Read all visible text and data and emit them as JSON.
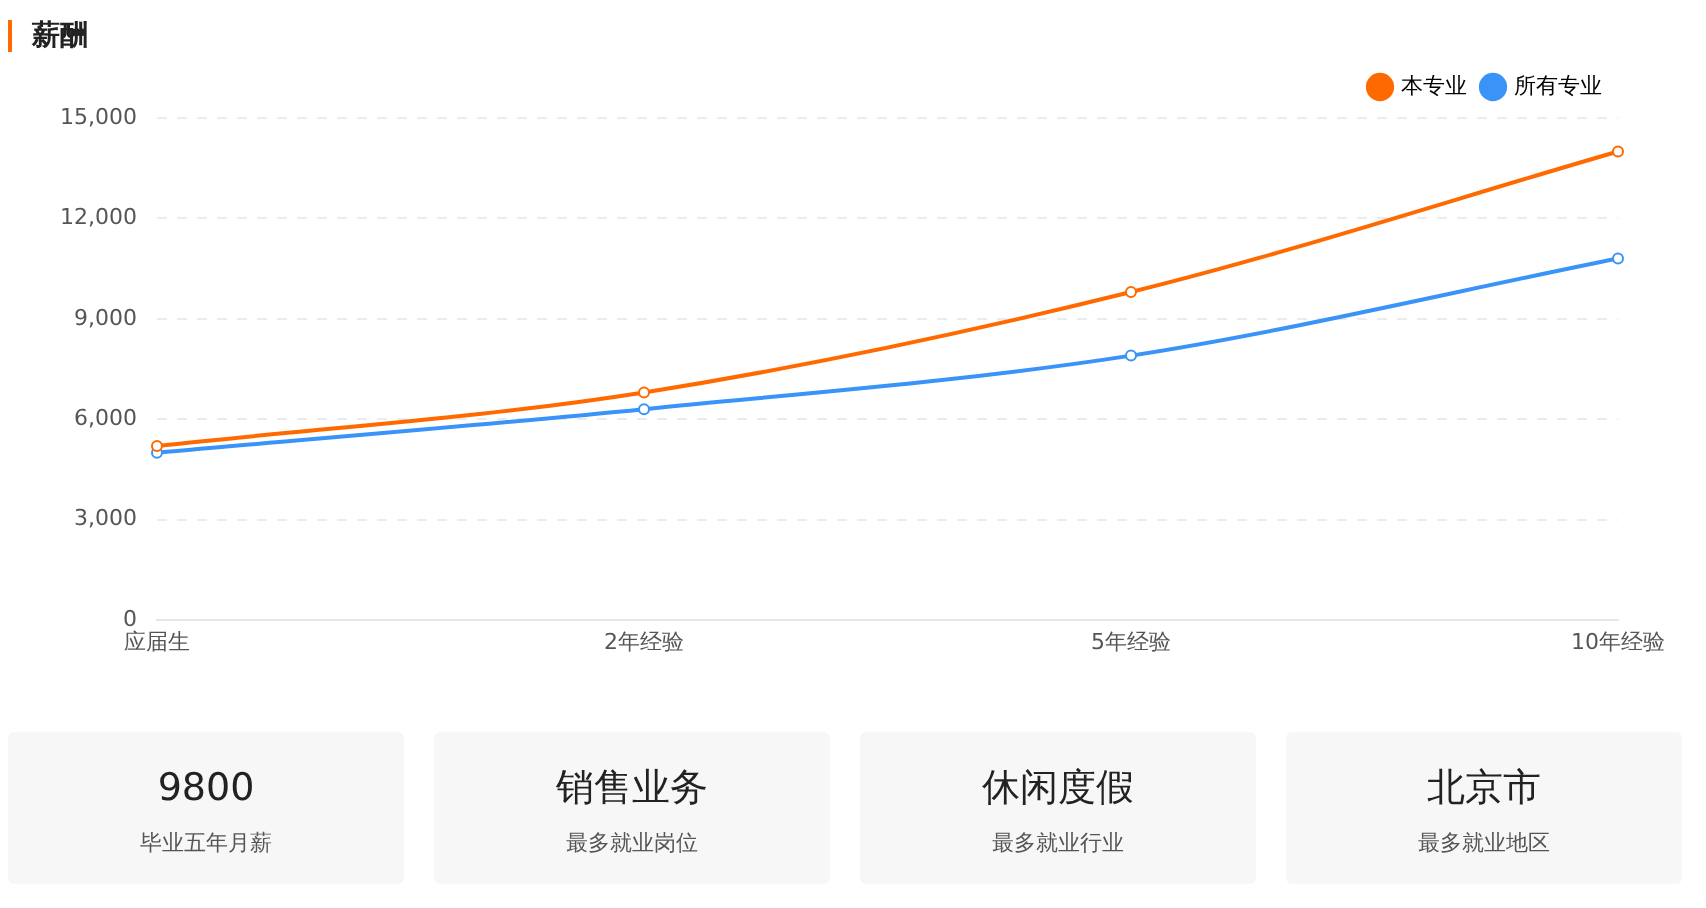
{
  "chart_data": [
    {
      "type": "line",
      "title": "薪酬",
      "categories": [
        "应届生",
        "2年经验",
        "5年经验",
        "10年经验"
      ],
      "series": [
        {
          "name": "本专业",
          "color": "#ff6a00",
          "values": [
            5200,
            6800,
            9800,
            14000
          ]
        },
        {
          "name": "所有专业",
          "color": "#3a94f8",
          "values": [
            5000,
            6300,
            7900,
            10800
          ]
        }
      ],
      "ylim": [
        0,
        15000
      ],
      "yticks": [
        {
          "value": 0,
          "label": "0"
        },
        {
          "value": 3000,
          "label": "3,000"
        },
        {
          "value": 6000,
          "label": "6,000"
        },
        {
          "value": 9000,
          "label": "9,000"
        },
        {
          "value": 12000,
          "label": "12,000"
        },
        {
          "value": 15000,
          "label": "15,000"
        }
      ],
      "grid": "y",
      "legend": "top right",
      "marker": "circle",
      "line_style": "solid"
    },
    {
      "type": "other",
      "annotations": [
        "9800",
        "毕业五年月薪",
        "销售业务",
        "最多就业岗位",
        "休闲度假",
        "最多就业行业",
        "北京市",
        "最多就业地区"
      ]
    }
  ]
}
